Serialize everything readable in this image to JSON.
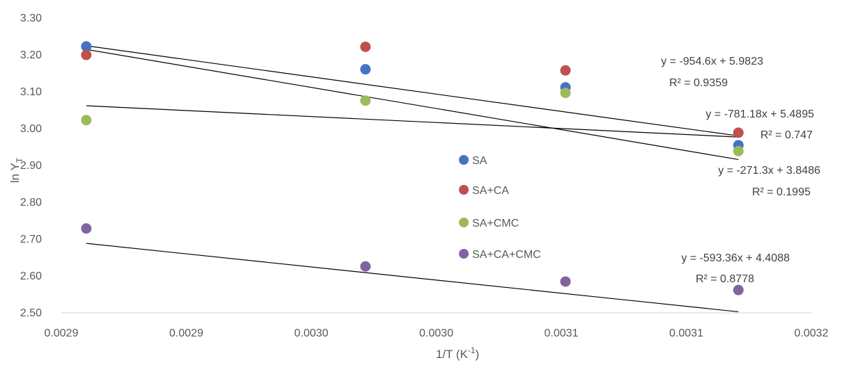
{
  "chart_data": {
    "type": "scatter",
    "xlabel": "1/T (K",
    "xlabel_sup": "-1",
    "xlabel_end": ")",
    "ylabel": "ln Y",
    "ylabel_sub": "T",
    "xlim": [
      0.002887,
      0.003247
    ],
    "ylim": [
      2.5,
      3.3
    ],
    "x_ticks": [
      {
        "value": 0.002887,
        "label": "0.0029"
      },
      {
        "value": 0.002947,
        "label": "0.0029"
      },
      {
        "value": 0.003007,
        "label": "0.0030"
      },
      {
        "value": 0.003067,
        "label": "0.0030"
      },
      {
        "value": 0.003127,
        "label": "0.0031"
      },
      {
        "value": 0.003187,
        "label": "0.0031"
      },
      {
        "value": 0.003247,
        "label": "0.0032"
      }
    ],
    "y_ticks": [
      {
        "value": 2.5,
        "label": "2.50"
      },
      {
        "value": 2.6,
        "label": "2.60"
      },
      {
        "value": 2.7,
        "label": "2.70"
      },
      {
        "value": 2.8,
        "label": "2.80"
      },
      {
        "value": 2.9,
        "label": "2.90"
      },
      {
        "value": 3.0,
        "label": "3.00"
      },
      {
        "value": 3.1,
        "label": "3.10"
      },
      {
        "value": 3.2,
        "label": "3.20"
      },
      {
        "value": 3.3,
        "label": "3.30"
      }
    ],
    "x": [
      0.002899,
      0.003033,
      0.003129,
      0.003212
    ],
    "series": [
      {
        "name": "SA",
        "color": "#4472C4",
        "y": [
          3.223,
          3.161,
          3.112,
          2.955
        ],
        "fit": {
          "slope": -954.6,
          "intercept": 5.9823
        }
      },
      {
        "name": "SA+CA",
        "color": "#C0504D",
        "y": [
          3.2,
          3.222,
          3.158,
          2.989
        ],
        "fit": {
          "slope": -781.18,
          "intercept": 5.4895
        }
      },
      {
        "name": "SA+CMC",
        "color": "#9BBB59",
        "y": [
          3.023,
          3.076,
          3.097,
          2.939
        ],
        "fit": {
          "slope": -271.3,
          "intercept": 3.8486
        }
      },
      {
        "name": "SA+CA+CMC",
        "color": "#8064A2",
        "y": [
          2.729,
          2.626,
          2.585,
          2.562
        ],
        "fit": {
          "slope": -593.36,
          "intercept": 4.4088
        }
      }
    ],
    "annotations": [
      {
        "eq": "y = -954.6x + 5.9823",
        "r2": "R² = 0.9359"
      },
      {
        "eq": "y = -781.18x + 5.4895",
        "r2": "R² = 0.747"
      },
      {
        "eq": "y = -271.3x + 3.8486",
        "r2": "R² = 0.1995"
      },
      {
        "eq": "y = -593.36x + 4.4088",
        "r2": "R² = 0.8778"
      }
    ],
    "trendline_color": "#000000",
    "grid": false,
    "legend_position": "center"
  }
}
